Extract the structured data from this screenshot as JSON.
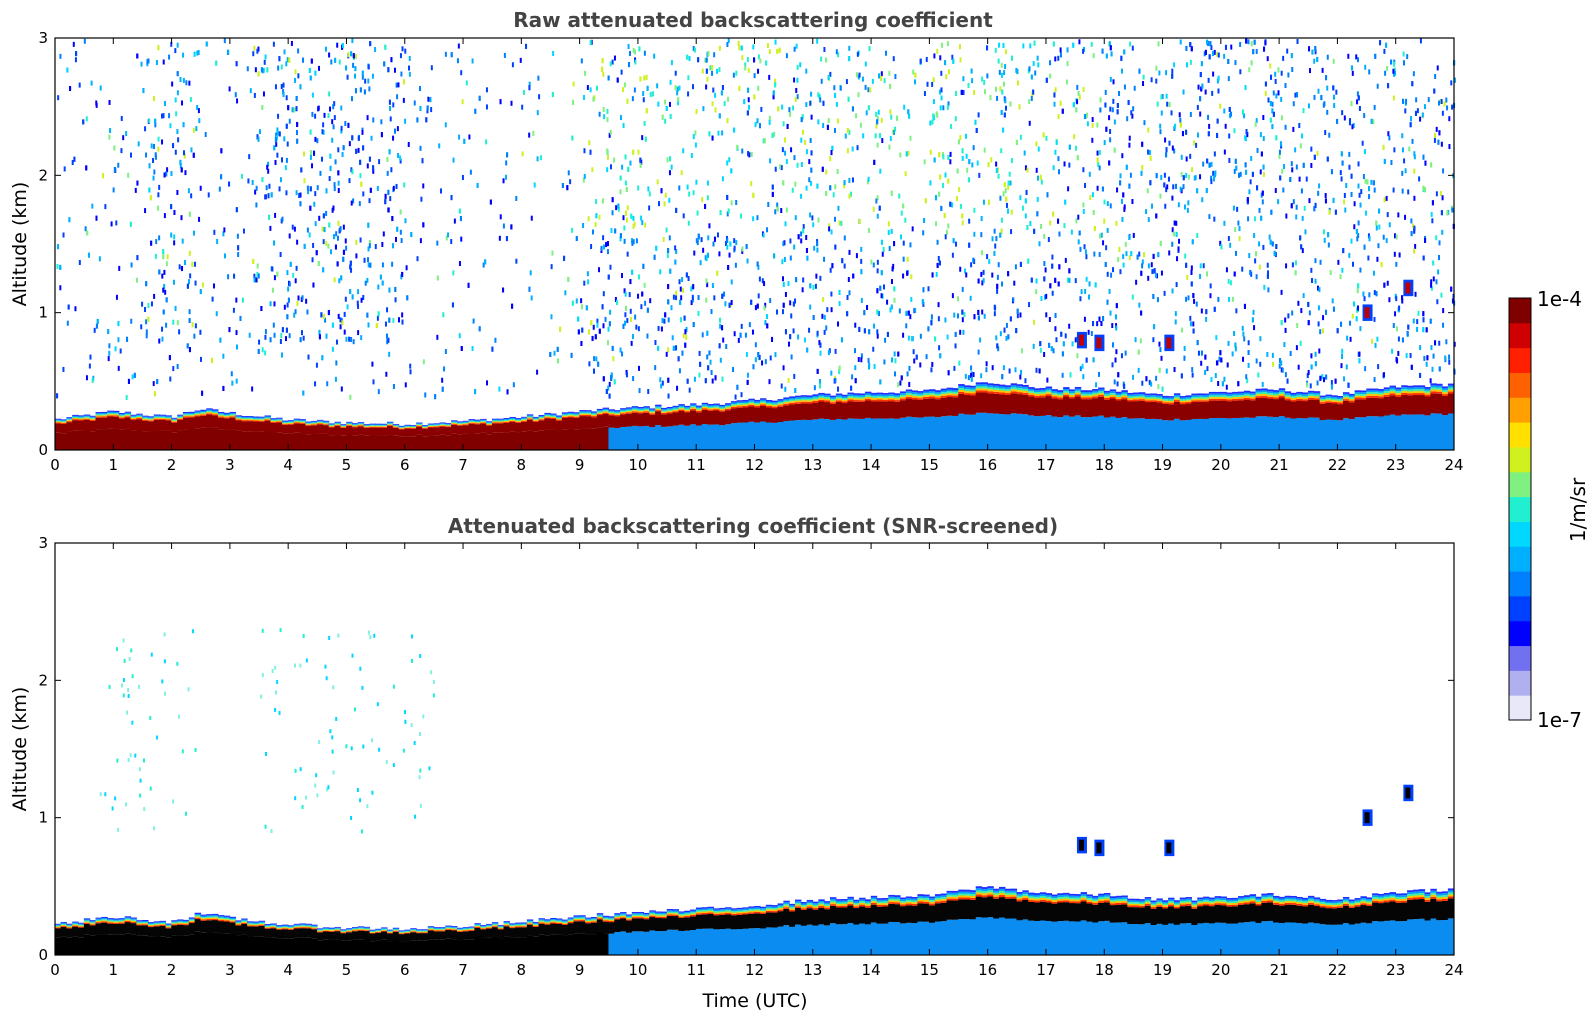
{
  "chart_data": [
    {
      "type": "heatmap",
      "title": "Raw attenuated backscattering coefficient",
      "ylabel": "Altitude (km)",
      "xlabel": "",
      "xlim": [
        0,
        24
      ],
      "ylim": [
        0,
        3
      ],
      "x_ticks": [
        "0",
        "1",
        "2",
        "3",
        "4",
        "5",
        "6",
        "7",
        "8",
        "9",
        "10",
        "11",
        "12",
        "13",
        "14",
        "15",
        "16",
        "17",
        "18",
        "19",
        "20",
        "21",
        "22",
        "23",
        "24"
      ],
      "y_ticks": [
        "0",
        "1",
        "2",
        "3"
      ],
      "boundary_layer_top_km": {
        "time_h": [
          0,
          1,
          2,
          2.5,
          3,
          4,
          5,
          6,
          7,
          8,
          9,
          10,
          11,
          12,
          13,
          14,
          15,
          16,
          17,
          18,
          19,
          20,
          21,
          22,
          23,
          24
        ],
        "alt_km": [
          0.22,
          0.28,
          0.24,
          0.3,
          0.27,
          0.22,
          0.2,
          0.19,
          0.21,
          0.24,
          0.28,
          0.31,
          0.33,
          0.36,
          0.4,
          0.42,
          0.43,
          0.5,
          0.45,
          0.44,
          0.4,
          0.42,
          0.44,
          0.4,
          0.46,
          0.48
        ]
      }
    },
    {
      "type": "heatmap",
      "title": "Attenuated backscattering coefficient (SNR-screened)",
      "ylabel": "Altitude (km)",
      "xlabel": "Time (UTC)",
      "xlim": [
        0,
        24
      ],
      "ylim": [
        0,
        3
      ],
      "x_ticks": [
        "0",
        "1",
        "2",
        "3",
        "4",
        "5",
        "6",
        "7",
        "8",
        "9",
        "10",
        "11",
        "12",
        "13",
        "14",
        "15",
        "16",
        "17",
        "18",
        "19",
        "20",
        "21",
        "22",
        "23",
        "24"
      ],
      "y_ticks": [
        "0",
        "1",
        "2",
        "3"
      ]
    }
  ],
  "colorbar": {
    "label": "1/m/sr",
    "max_label": "1e-4",
    "min_label": "1e-7",
    "colors": [
      "#e8e8f8",
      "#b0b0f0",
      "#7070f0",
      "#0000ff",
      "#0040ff",
      "#0080ff",
      "#00b0ff",
      "#00d8ff",
      "#20f0d0",
      "#80f080",
      "#d0f020",
      "#ffe000",
      "#ffa000",
      "#ff6000",
      "#ff2000",
      "#d00000",
      "#800000"
    ]
  }
}
